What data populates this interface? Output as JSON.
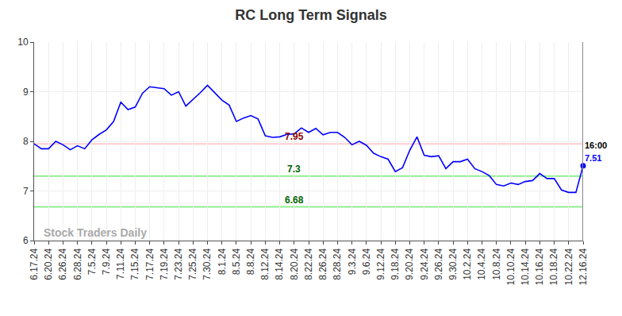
{
  "chart_data": {
    "type": "line",
    "title": "RC Long Term Signals",
    "categories": [
      "6.17.24",
      null,
      "6.20.24",
      null,
      "6.26.24",
      null,
      "6.28.24",
      null,
      "7.5.24",
      null,
      "7.9.24",
      null,
      "7.11.24",
      null,
      "7.15.24",
      null,
      "7.17.24",
      null,
      "7.19.24",
      null,
      "7.23.24",
      null,
      "7.25.24",
      null,
      "7.30.24",
      null,
      "8.1.24",
      null,
      "8.5.24",
      null,
      "8.8.24",
      null,
      "8.12.24",
      null,
      "8.14.24",
      null,
      "8.20.24",
      null,
      "8.22.24",
      null,
      "8.26.24",
      null,
      "8.28.24",
      null,
      "9.3.24",
      null,
      "9.6.24",
      null,
      "9.12.24",
      null,
      "9.18.24",
      null,
      "9.20.24",
      null,
      "9.24.24",
      null,
      "9.26.24",
      null,
      "9.30.24",
      null,
      "10.2.24",
      null,
      "10.4.24",
      null,
      "10.8.24",
      null,
      "10.10.24",
      null,
      "10.14.24",
      null,
      "10.16.24",
      null,
      "10.18.24",
      null,
      "10.22.24",
      null,
      "12.16.24"
    ],
    "values": [
      7.95,
      7.85,
      7.85,
      8.0,
      7.93,
      7.83,
      7.91,
      7.85,
      8.03,
      8.14,
      8.23,
      8.4,
      8.79,
      8.64,
      8.69,
      8.97,
      9.1,
      9.08,
      9.06,
      8.93,
      9.0,
      8.71,
      8.84,
      8.98,
      9.13,
      8.98,
      8.83,
      8.73,
      8.4,
      8.47,
      8.52,
      8.45,
      8.11,
      8.08,
      8.09,
      8.14,
      8.15,
      8.27,
      8.18,
      8.26,
      8.13,
      8.18,
      8.18,
      8.08,
      7.93,
      8.0,
      7.92,
      7.76,
      7.69,
      7.64,
      7.39,
      7.47,
      7.82,
      8.09,
      7.72,
      7.69,
      7.71,
      7.45,
      7.59,
      7.59,
      7.64,
      7.45,
      7.39,
      7.31,
      7.13,
      7.1,
      7.16,
      7.13,
      7.19,
      7.21,
      7.35,
      7.25,
      7.25,
      7.02,
      6.97,
      6.97,
      7.51
    ],
    "color": "#0000ff",
    "ylim": [
      6,
      10
    ],
    "yticks": [
      6,
      7,
      8,
      9,
      10
    ],
    "grid": true,
    "levels": [
      {
        "value": 7.95,
        "label": "7.95",
        "color": "#ffcccc",
        "label_color": "#8b0000"
      },
      {
        "value": 7.3,
        "label": "7.3",
        "color": "#90ee90",
        "label_color": "#006400"
      },
      {
        "value": 6.68,
        "label": "6.68",
        "color": "#90ee90",
        "label_color": "#006400"
      }
    ],
    "last_point": {
      "time": "16:00",
      "label": "7.51"
    },
    "watermark": "Stock Traders Daily"
  }
}
